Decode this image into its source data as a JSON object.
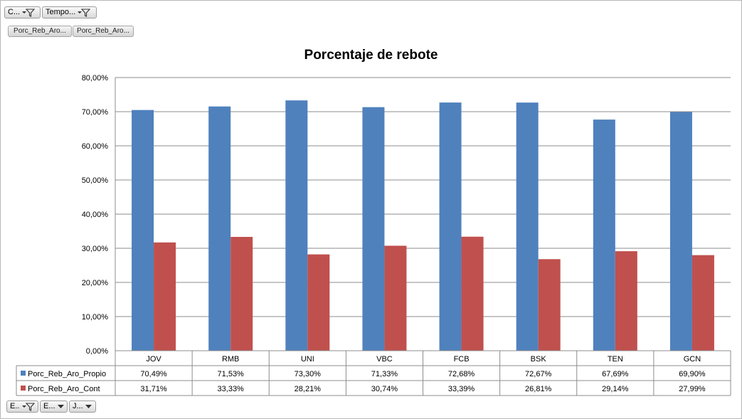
{
  "filters": {
    "top": [
      {
        "label": "C...",
        "icon": "filter-dropdown-icon"
      },
      {
        "label": "Tempo...",
        "icon": "filter-dropdown-icon"
      }
    ],
    "values": [
      "Porc_Reb_Aro...",
      "Porc_Reb_Aro..."
    ],
    "bottom": [
      {
        "label": "E...",
        "icon": "filter-dropdown-icon"
      },
      {
        "label": "E...",
        "icon": "dropdown-arrow-icon"
      },
      {
        "label": "J...",
        "icon": "dropdown-arrow-icon"
      }
    ]
  },
  "chart_data": {
    "type": "bar",
    "title": "Porcentaje de rebote",
    "categories": [
      "JOV",
      "RMB",
      "UNI",
      "VBC",
      "FCB",
      "BSK",
      "TEN",
      "GCN"
    ],
    "series": [
      {
        "name": "Porc_Reb_Aro_Propio",
        "color": "#4f81bd",
        "values": [
          70.49,
          71.53,
          73.3,
          71.33,
          72.68,
          72.67,
          67.69,
          69.9
        ],
        "labels": [
          "70,49%",
          "71,53%",
          "73,30%",
          "71,33%",
          "72,68%",
          "72,67%",
          "67,69%",
          "69,90%"
        ]
      },
      {
        "name": "Porc_Reb_Aro_Cont",
        "color": "#c0504d",
        "values": [
          31.71,
          33.33,
          28.21,
          30.74,
          33.39,
          26.81,
          29.14,
          27.99
        ],
        "labels": [
          "31,71%",
          "33,33%",
          "28,21%",
          "30,74%",
          "33,39%",
          "26,81%",
          "29,14%",
          "27,99%"
        ]
      }
    ],
    "ylim": [
      0,
      80
    ],
    "yticks": [
      "0,00%",
      "10,00%",
      "20,00%",
      "30,00%",
      "40,00%",
      "50,00%",
      "60,00%",
      "70,00%",
      "80,00%"
    ],
    "grid": true,
    "legend": "data-table"
  }
}
